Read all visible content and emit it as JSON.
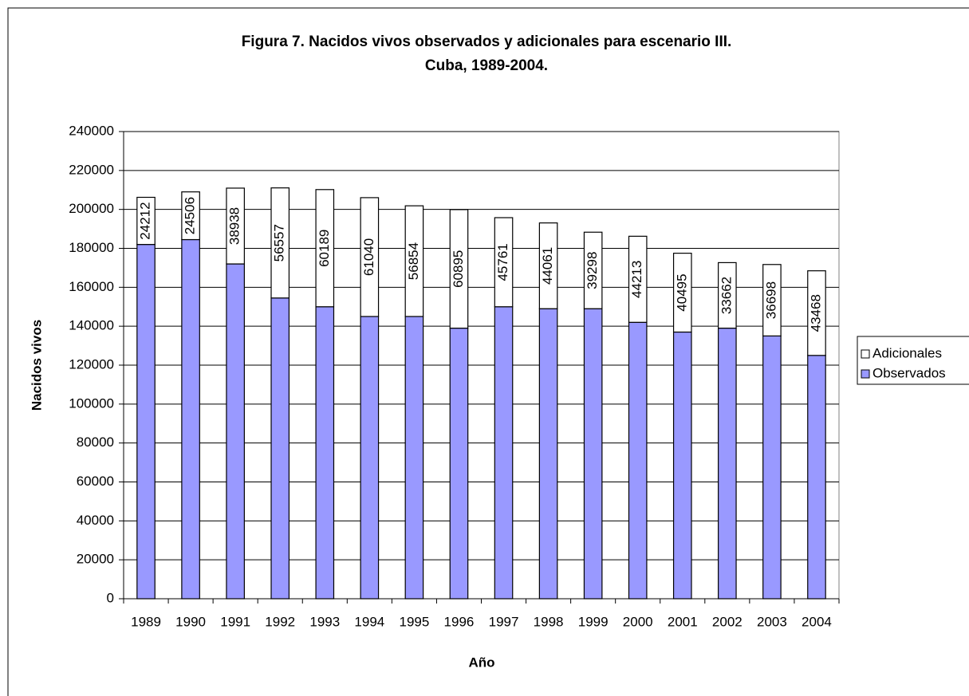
{
  "chart_data": {
    "type": "stacked-bar",
    "title": [
      "Figura 7. Nacidos vivos observados y adicionales para escenario III.",
      "Cuba, 1989-2004."
    ],
    "x_label": "Año",
    "y_label": "Nacidos vivos",
    "categories": [
      "1989",
      "1990",
      "1991",
      "1992",
      "1993",
      "1994",
      "1995",
      "1996",
      "1997",
      "1998",
      "1999",
      "2000",
      "2001",
      "2002",
      "2003",
      "2004"
    ],
    "series": [
      {
        "name": "Observados",
        "color": "#9999ff",
        "values": [
          182000,
          184500,
          172000,
          154500,
          150000,
          145000,
          145000,
          139000,
          150000,
          149000,
          149000,
          142000,
          137000,
          139000,
          135000,
          125000
        ]
      },
      {
        "name": "Adicionales",
        "color": "#ffffff",
        "values": [
          24212,
          24506,
          38938,
          56557,
          60189,
          61040,
          56854,
          60895,
          45761,
          44061,
          39298,
          44213,
          40495,
          33662,
          36698,
          43468
        ]
      }
    ],
    "ylim": [
      0,
      240000
    ],
    "yticks": [
      0,
      20000,
      40000,
      60000,
      80000,
      100000,
      120000,
      140000,
      160000,
      180000,
      200000,
      220000,
      240000
    ],
    "grid": true,
    "legend": "right"
  }
}
